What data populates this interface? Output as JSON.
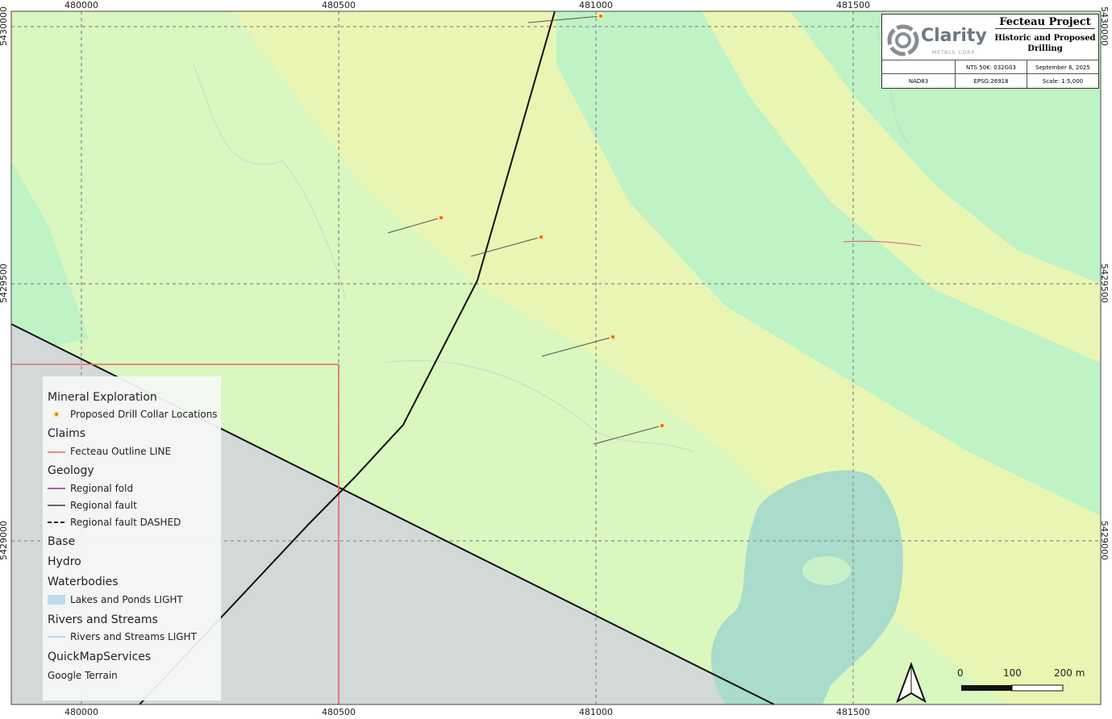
{
  "title_block": {
    "logo_text": "Clarity",
    "logo_subtext": "METALS CORP.",
    "project_title": "Fecteau Project",
    "subtitle": "Historic and Proposed Drilling",
    "nts": "NTS 50K: 032G03",
    "date": "September 6, 2025",
    "datum": "NAD83",
    "epsg": "EPSG:26918",
    "scale": "Scale: 1:5,000"
  },
  "grid": {
    "eastings": [
      "480000",
      "480500",
      "481000",
      "481500"
    ],
    "northings": [
      "5430000",
      "5429500",
      "5429000"
    ]
  },
  "legend": {
    "mineral_exploration": "Mineral Exploration",
    "drill_collars": "Proposed Drill Collar Locations",
    "claims": "Claims",
    "fecteau_outline": "Fecteau Outline LINE",
    "geology": "Geology",
    "regional_fold": "Regional fold",
    "regional_fault": "Regional fault",
    "regional_fault_dashed": "Regional fault DASHED",
    "base": "Base",
    "hydro": "Hydro",
    "waterbodies": "Waterbodies",
    "lakes": "Lakes and Ponds LIGHT",
    "rivers_group": "Rivers and Streams",
    "rivers": "Rivers and Streams LIGHT",
    "qms": "QuickMapServices",
    "terrain": "Google Terrain"
  },
  "scale_bar": {
    "labels": [
      "0",
      "100",
      "200 m"
    ]
  },
  "north_arrow": "north-arrow-icon",
  "colors": {
    "light_green": "#d9f7bf",
    "yellow": "#e9f6b3",
    "teal": "#bff2c4",
    "gray": "#d3d8d8",
    "water": "#a9dcca",
    "claim_line": "#e86a6a",
    "fault": "#111111",
    "collar": "#f0a020"
  }
}
